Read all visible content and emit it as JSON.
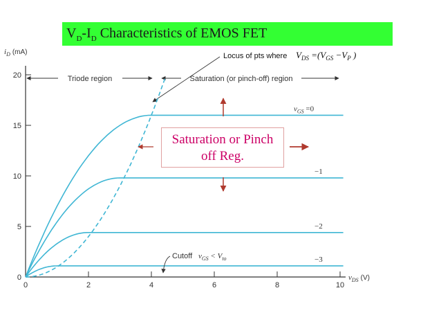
{
  "title": {
    "main": "V",
    "sub1": "D",
    "mid": "-I",
    "sub2": "D",
    "rest": " Characteristics of EMOS FET"
  },
  "colors": {
    "curve": "#3fb6d4",
    "axis": "#333333",
    "title_bg": "#33ff33",
    "annotation": "#cc0066",
    "arrow": "#b03a2e"
  },
  "chart_data": {
    "type": "line",
    "ylabel_main": "i",
    "ylabel_sub": "D",
    "ylabel_unit": "(mA)",
    "xlabel_main": "v",
    "xlabel_sub": "DS",
    "xlabel_unit": "(V)",
    "xlim": [
      0,
      10
    ],
    "ylim": [
      0,
      20
    ],
    "xticks": [
      "0",
      "2",
      "4",
      "6",
      "8",
      "10"
    ],
    "yticks": [
      "0",
      "5",
      "10",
      "15",
      "20"
    ],
    "series": [
      {
        "name": "vGS = 0",
        "label_main": "v",
        "label_sub": "GS",
        "label_rest": " =0",
        "vsat": 4,
        "isat": 16
      },
      {
        "name": "-1",
        "label_main": "−1",
        "vsat": 3,
        "isat": 9.8
      },
      {
        "name": "-2",
        "label_main": "−2",
        "vsat": 2,
        "isat": 4.4
      },
      {
        "name": "-3",
        "label_main": "−3",
        "vsat": 1,
        "isat": 1.1
      }
    ],
    "locus_points": [
      [
        0,
        0
      ],
      [
        1,
        1
      ],
      [
        2,
        4
      ],
      [
        3,
        9
      ],
      [
        4,
        16
      ],
      [
        4.45,
        20
      ]
    ]
  },
  "annotations": {
    "triode": "Triode region",
    "saturation": "Saturation (or pinch-off) region",
    "locus_prefix": "Locus of pts where",
    "locus_eq": "V",
    "locus_ds": "DS",
    "locus_eq2": " =(V",
    "locus_gs": "GS",
    "locus_eq3": " −V",
    "locus_p": "P",
    "locus_eq4": " )",
    "cutoff": "Cutoff",
    "cutoff_cond_main": "v",
    "cutoff_cond_sub": "GS",
    "cutoff_cond_mid": " < V",
    "cutoff_cond_sub2": "to",
    "box_line1": "Saturation or Pinch",
    "box_line2": "off Reg."
  }
}
